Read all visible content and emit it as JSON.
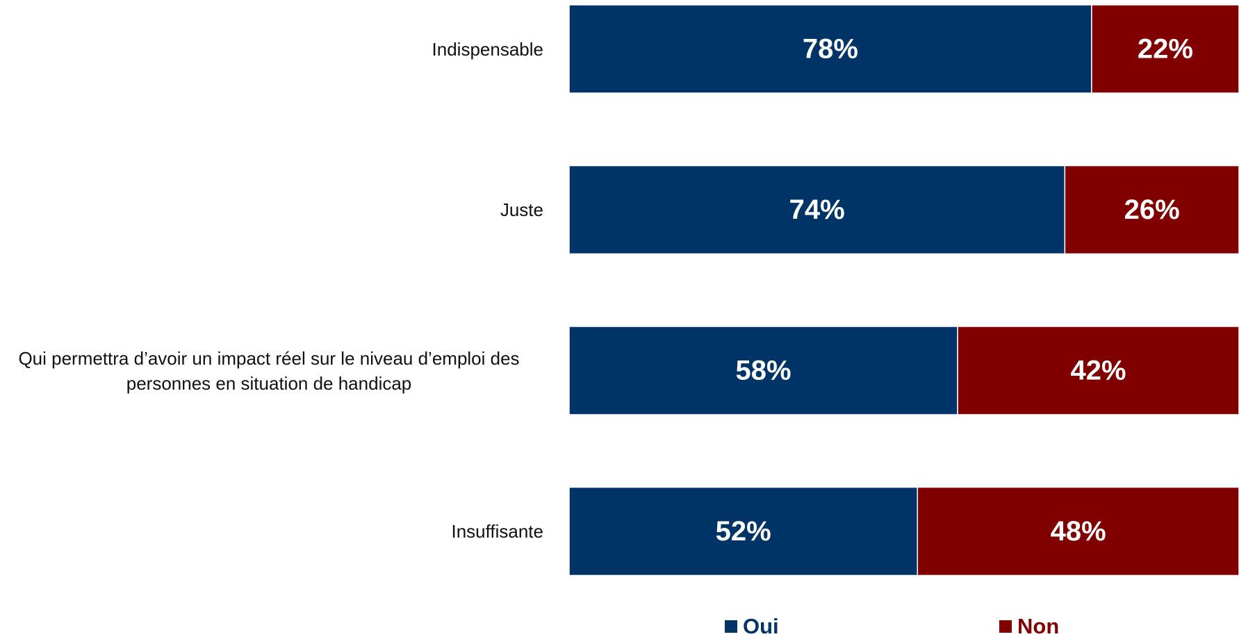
{
  "chart_data": {
    "type": "bar",
    "orientation": "horizontal",
    "stacked": true,
    "normalized": true,
    "categories": [
      "Indispensable",
      "Juste",
      "Qui permettra d’avoir un impact réel sur le niveau d’emploi des personnes en situation de handicap",
      "Insuffisante"
    ],
    "series": [
      {
        "name": "Oui",
        "values": [
          78,
          74,
          58,
          52
        ],
        "color": "#003366"
      },
      {
        "name": "Non",
        "values": [
          22,
          26,
          42,
          48
        ],
        "color": "#800000"
      }
    ],
    "value_suffix": "%",
    "xlim": [
      0,
      100
    ],
    "grid": false,
    "legend_position": "bottom"
  }
}
